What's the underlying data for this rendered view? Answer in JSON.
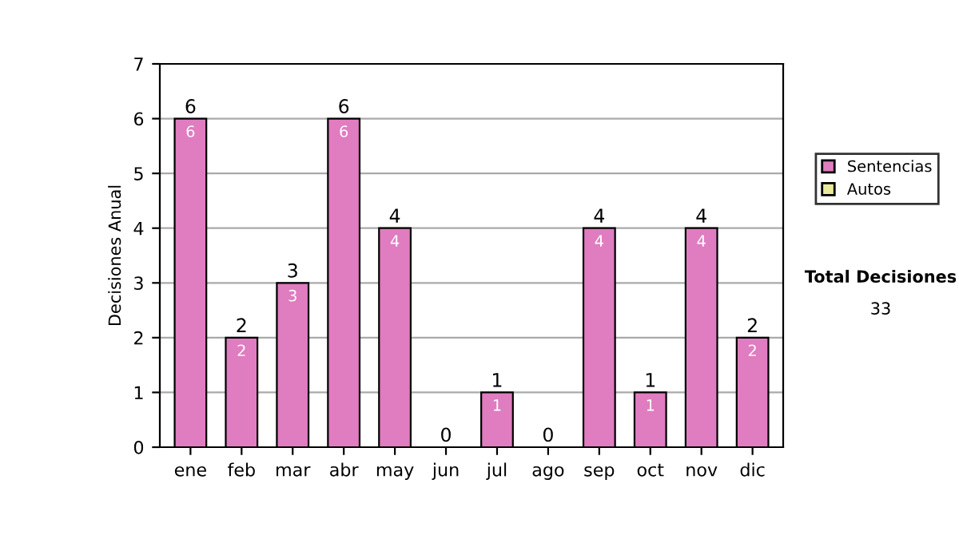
{
  "chart_data": {
    "type": "bar",
    "ylabel": "Decisiones Anual",
    "categories": [
      "ene",
      "feb",
      "mar",
      "abr",
      "may",
      "jun",
      "jul",
      "ago",
      "sep",
      "oct",
      "nov",
      "dic"
    ],
    "stacked": true,
    "series": [
      {
        "name": "Sentencias",
        "color": "#e07cc0",
        "values": [
          6,
          2,
          3,
          6,
          4,
          0,
          1,
          0,
          4,
          1,
          4,
          2
        ],
        "value_labels": [
          "6",
          "2",
          "3",
          "6",
          "4",
          null,
          "1",
          null,
          "4",
          "1",
          "4",
          "2"
        ]
      },
      {
        "name": "Autos",
        "color": "#eaea9c",
        "values": [
          0,
          0,
          0,
          0,
          0,
          0,
          0,
          0,
          0,
          0,
          0,
          0
        ]
      }
    ],
    "totals": [
      "6",
      "2",
      "3",
      "6",
      "4",
      "0",
      "1",
      "0",
      "4",
      "1",
      "4",
      "2"
    ],
    "ylim": [
      0,
      7
    ],
    "yticks": [
      0,
      1,
      2,
      3,
      4,
      5,
      6,
      7
    ],
    "grid": "y",
    "legend": "right",
    "annotations": [
      "Total Decisiones",
      "33"
    ]
  }
}
